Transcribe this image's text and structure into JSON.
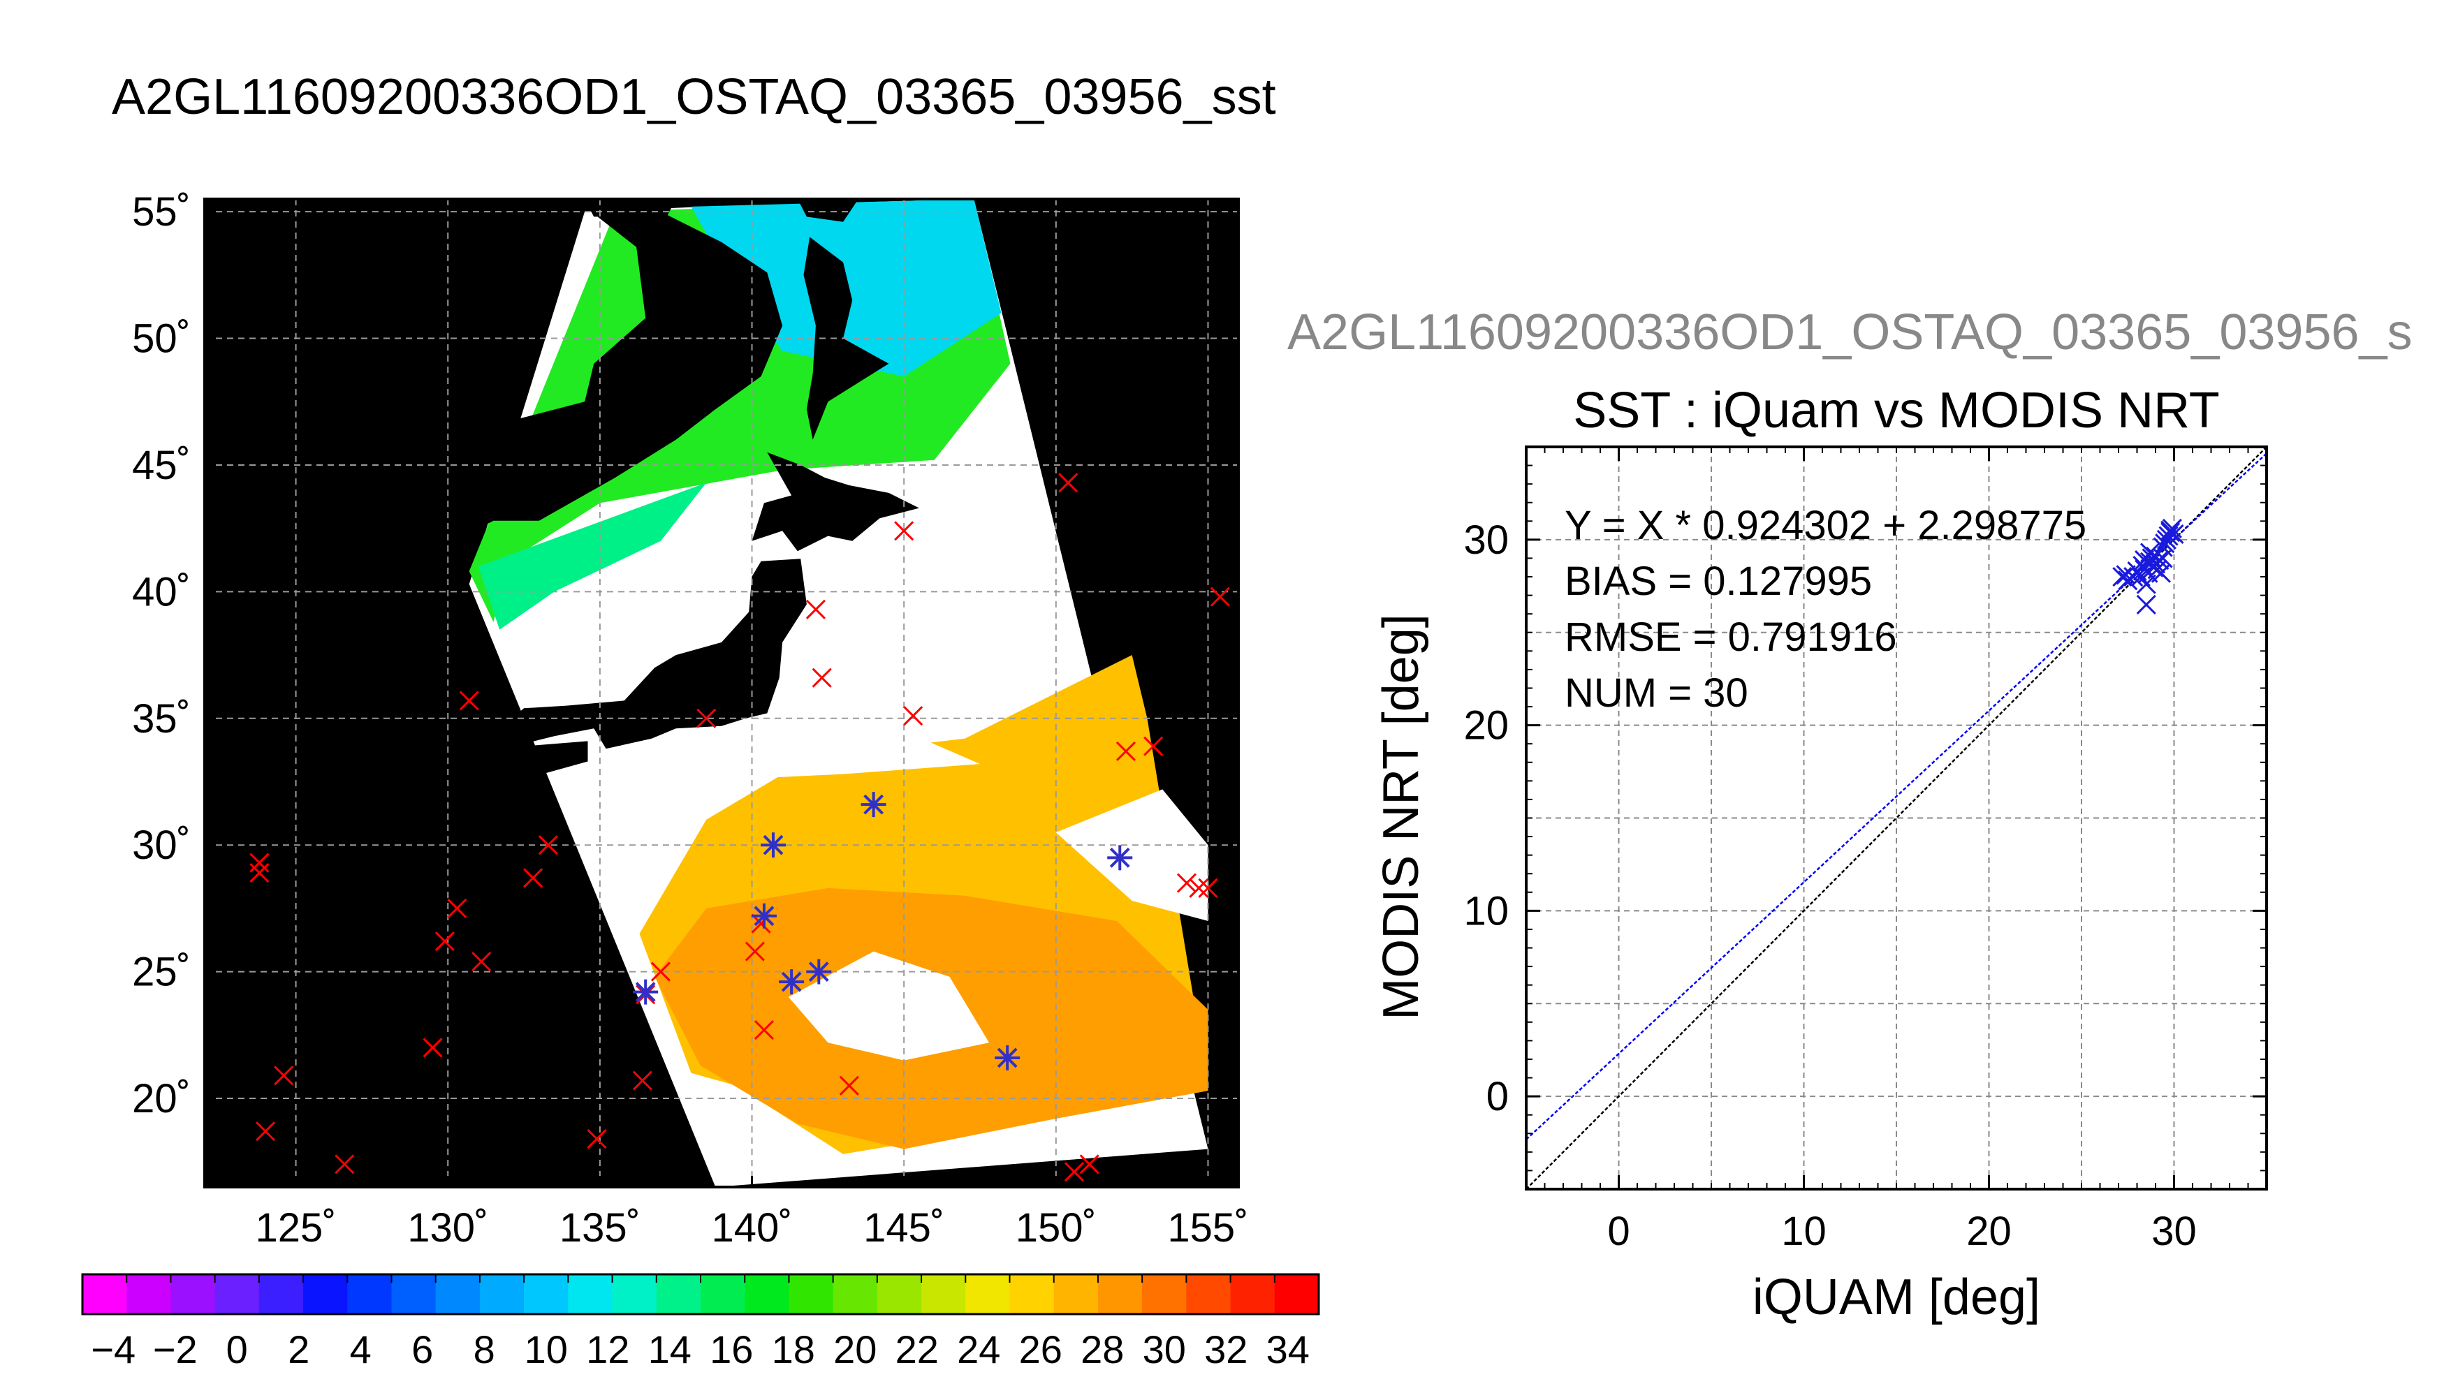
{
  "page_title": "A2GL11609200336OD1_OSTAQ_03365_03956_sst",
  "scatter_file_title": "A2GL11609200336OD1_OSTAQ_03365_03956_s",
  "chart_data": [
    {
      "type": "heatmap",
      "title": "A2GL11609200336OD1_OSTAQ_03365_03956_sst",
      "xlim": [
        122,
        156
      ],
      "ylim": [
        16.5,
        55.5
      ],
      "x_ticks": [
        125,
        130,
        135,
        140,
        145,
        150,
        155
      ],
      "x_tick_labels": [
        "125˚",
        "130˚",
        "135˚",
        "140˚",
        "145˚",
        "150˚",
        "155˚"
      ],
      "y_ticks": [
        20,
        25,
        30,
        35,
        40,
        45,
        50,
        55
      ],
      "y_tick_labels": [
        "20˚",
        "25˚",
        "30˚",
        "35˚",
        "40˚",
        "45˚",
        "50˚",
        "55˚"
      ],
      "grid": true,
      "colorbar": {
        "min": -5,
        "max": 35,
        "tick_values": [
          -4,
          -2,
          0,
          2,
          4,
          6,
          8,
          10,
          12,
          14,
          16,
          18,
          20,
          22,
          24,
          26,
          28,
          30,
          32,
          34
        ],
        "tick_labels": [
          "−4",
          "−2",
          "0",
          "2",
          "4",
          "6",
          "8",
          "10",
          "12",
          "14",
          "16",
          "18",
          "20",
          "22",
          "24",
          "26",
          "28",
          "30",
          "32",
          "34"
        ],
        "colors": [
          "#ff00ff",
          "#cc00ff",
          "#9a10ff",
          "#6a20ff",
          "#3b1fff",
          "#0a14ff",
          "#0038ff",
          "#0060ff",
          "#0088ff",
          "#00aaff",
          "#00c8ff",
          "#00e6f0",
          "#00f0c8",
          "#00f08a",
          "#00ec50",
          "#00e81e",
          "#30e600",
          "#66e600",
          "#9ae600",
          "#c8e600",
          "#f0e600",
          "#ffd200",
          "#ffb400",
          "#ff9600",
          "#ff7200",
          "#ff4a00",
          "#ff2200",
          "#ff0000"
        ]
      },
      "iquam_points": [
        {
          "lon": 123.8,
          "lat": 29.3
        },
        {
          "lon": 123.8,
          "lat": 28.9
        },
        {
          "lon": 124.0,
          "lat": 18.7
        },
        {
          "lon": 124.6,
          "lat": 20.9
        },
        {
          "lon": 126.6,
          "lat": 17.4
        },
        {
          "lon": 129.5,
          "lat": 22.0
        },
        {
          "lon": 129.9,
          "lat": 26.2
        },
        {
          "lon": 130.3,
          "lat": 27.5
        },
        {
          "lon": 130.7,
          "lat": 35.7
        },
        {
          "lon": 131.1,
          "lat": 25.4
        },
        {
          "lon": 132.8,
          "lat": 28.7
        },
        {
          "lon": 133.3,
          "lat": 30.0
        },
        {
          "lon": 134.9,
          "lat": 18.4
        },
        {
          "lon": 136.4,
          "lat": 20.7
        },
        {
          "lon": 136.5,
          "lat": 24.1
        },
        {
          "lon": 137.0,
          "lat": 25.0
        },
        {
          "lon": 138.5,
          "lat": 35.0
        },
        {
          "lon": 140.1,
          "lat": 25.8
        },
        {
          "lon": 140.3,
          "lat": 26.9
        },
        {
          "lon": 140.4,
          "lat": 22.7
        },
        {
          "lon": 142.1,
          "lat": 39.3
        },
        {
          "lon": 142.3,
          "lat": 36.6
        },
        {
          "lon": 143.2,
          "lat": 20.5
        },
        {
          "lon": 145.0,
          "lat": 42.4
        },
        {
          "lon": 145.3,
          "lat": 35.1
        },
        {
          "lon": 150.4,
          "lat": 44.3
        },
        {
          "lon": 150.6,
          "lat": 17.1
        },
        {
          "lon": 151.1,
          "lat": 17.4
        },
        {
          "lon": 152.3,
          "lat": 33.7
        },
        {
          "lon": 153.2,
          "lat": 33.9
        },
        {
          "lon": 154.3,
          "lat": 28.5
        },
        {
          "lon": 154.7,
          "lat": 28.3
        },
        {
          "lon": 155.0,
          "lat": 28.3
        },
        {
          "lon": 155.4,
          "lat": 39.8
        }
      ],
      "matchup_points": [
        {
          "lon": 136.5,
          "lat": 24.2
        },
        {
          "lon": 140.4,
          "lat": 27.2
        },
        {
          "lon": 140.7,
          "lat": 30.0
        },
        {
          "lon": 141.3,
          "lat": 24.6
        },
        {
          "lon": 142.2,
          "lat": 25.0
        },
        {
          "lon": 144.0,
          "lat": 31.6
        },
        {
          "lon": 148.4,
          "lat": 21.6
        },
        {
          "lon": 152.1,
          "lat": 29.5
        }
      ],
      "marker_colors": {
        "iquam": "#ff0000",
        "matchup": "#3030c8"
      }
    },
    {
      "type": "scatter",
      "title": "SST : iQuam vs MODIS NRT",
      "xlabel": "iQUAM [deg]",
      "ylabel": "MODIS NRT [deg]",
      "xlim": [
        -5,
        35
      ],
      "ylim": [
        -5,
        35
      ],
      "x_ticks": [
        0,
        10,
        20,
        30
      ],
      "y_ticks": [
        0,
        10,
        20,
        30
      ],
      "grid": true,
      "stats": [
        "Y = X * 0.924302 + 2.298775",
        "BIAS = 0.127995",
        "RMSE = 0.791916",
        "NUM = 30"
      ],
      "fit": {
        "slope": 0.924302,
        "intercept": 2.298775,
        "color": "#0000ff"
      },
      "identity_line_color": "#000000",
      "point_color": "#1a1adc",
      "points": [
        [
          27.2,
          28.0
        ],
        [
          27.4,
          28.1
        ],
        [
          27.5,
          27.8
        ],
        [
          27.8,
          28.0
        ],
        [
          28.0,
          28.3
        ],
        [
          28.2,
          28.0
        ],
        [
          28.3,
          28.6
        ],
        [
          28.4,
          28.9
        ],
        [
          28.5,
          26.5
        ],
        [
          28.5,
          27.6
        ],
        [
          28.6,
          28.2
        ],
        [
          28.7,
          28.8
        ],
        [
          28.8,
          29.0
        ],
        [
          28.9,
          28.5
        ],
        [
          29.0,
          28.7
        ],
        [
          29.0,
          29.1
        ],
        [
          29.1,
          28.4
        ],
        [
          29.2,
          28.9
        ],
        [
          29.3,
          28.2
        ],
        [
          29.4,
          29.6
        ],
        [
          29.5,
          29.8
        ],
        [
          29.6,
          30.0
        ],
        [
          29.7,
          30.2
        ],
        [
          29.8,
          30.4
        ],
        [
          29.9,
          30.6
        ],
        [
          30.0,
          30.3
        ],
        [
          29.4,
          29.0
        ],
        [
          28.7,
          29.3
        ],
        [
          29.8,
          30.5
        ],
        [
          28.4,
          28.4
        ]
      ]
    }
  ]
}
